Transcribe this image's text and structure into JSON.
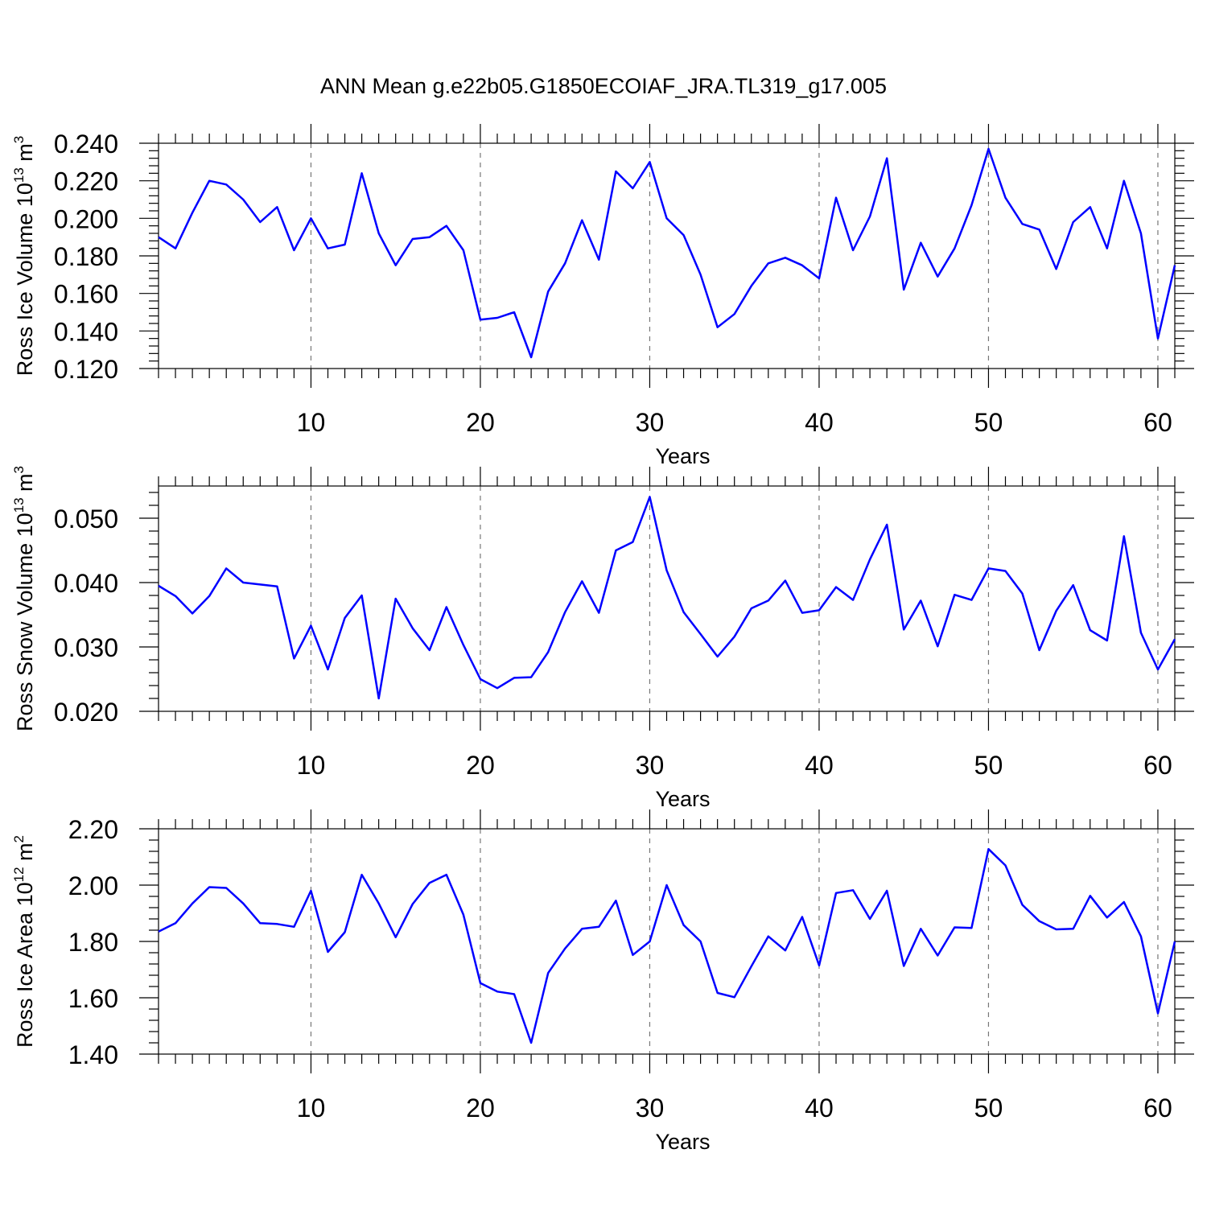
{
  "title": "ANN Mean g.e22b05.G1850ECOIAF_JRA.TL319_g17.005",
  "colors": {
    "series": "#0000ff",
    "axis": "#000000",
    "grid": "#777777"
  },
  "chart_data": [
    {
      "type": "line",
      "ylabel": "Ross Ice Volume 10",
      "ylabel_sup": "13",
      "ylabel_unit": " m",
      "ylabel_unit_sup": "3",
      "xlabel": "Years",
      "xlim": [
        1,
        61
      ],
      "ylim": [
        0.12,
        0.24
      ],
      "xticks": [
        "10",
        "20",
        "30",
        "40",
        "50",
        "60"
      ],
      "yticks": [
        "0.120",
        "0.140",
        "0.160",
        "0.180",
        "0.200",
        "0.220",
        "0.240"
      ],
      "grid_x": true,
      "x": [
        1,
        2,
        3,
        4,
        5,
        6,
        7,
        8,
        9,
        10,
        11,
        12,
        13,
        14,
        15,
        16,
        17,
        18,
        19,
        20,
        21,
        22,
        23,
        24,
        25,
        26,
        27,
        28,
        29,
        30,
        31,
        32,
        33,
        34,
        35,
        36,
        37,
        38,
        39,
        40,
        41,
        42,
        43,
        44,
        45,
        46,
        47,
        48,
        49,
        50,
        51,
        52,
        53,
        54,
        55,
        56,
        57,
        58,
        59,
        60,
        61
      ],
      "y": [
        0.19,
        0.184,
        0.203,
        0.22,
        0.218,
        0.21,
        0.198,
        0.206,
        0.183,
        0.2,
        0.184,
        0.186,
        0.224,
        0.192,
        0.175,
        0.189,
        0.19,
        0.196,
        0.183,
        0.146,
        0.147,
        0.15,
        0.126,
        0.161,
        0.176,
        0.199,
        0.178,
        0.225,
        0.216,
        0.23,
        0.2,
        0.191,
        0.17,
        0.142,
        0.149,
        0.164,
        0.176,
        0.179,
        0.175,
        0.168,
        0.211,
        0.183,
        0.201,
        0.232,
        0.162,
        0.187,
        0.169,
        0.184,
        0.207,
        0.237,
        0.211,
        0.197,
        0.194,
        0.173,
        0.198,
        0.206,
        0.184,
        0.22,
        0.192,
        0.136,
        0.175
      ]
    },
    {
      "type": "line",
      "ylabel": "Ross Snow Volume 10",
      "ylabel_sup": "13",
      "ylabel_unit": " m",
      "ylabel_unit_sup": "3",
      "xlabel": "Years",
      "xlim": [
        1,
        61
      ],
      "ylim": [
        0.02,
        0.055
      ],
      "xticks": [
        "10",
        "20",
        "30",
        "40",
        "50",
        "60"
      ],
      "yticks": [
        "0.020",
        "0.030",
        "0.040",
        "0.050"
      ],
      "grid_x": true,
      "x": [
        1,
        2,
        3,
        4,
        5,
        6,
        7,
        8,
        9,
        10,
        11,
        12,
        13,
        14,
        15,
        16,
        17,
        18,
        19,
        20,
        21,
        22,
        23,
        24,
        25,
        26,
        27,
        28,
        29,
        30,
        31,
        32,
        33,
        34,
        35,
        36,
        37,
        38,
        39,
        40,
        41,
        42,
        43,
        44,
        45,
        46,
        47,
        48,
        49,
        50,
        51,
        52,
        53,
        54,
        55,
        56,
        57,
        58,
        59,
        60,
        61
      ],
      "y": [
        0.0395,
        0.0379,
        0.0352,
        0.0379,
        0.0422,
        0.04,
        0.0397,
        0.0394,
        0.0282,
        0.0333,
        0.0265,
        0.0345,
        0.038,
        0.022,
        0.0375,
        0.0329,
        0.0295,
        0.0362,
        0.0303,
        0.025,
        0.0236,
        0.0252,
        0.0253,
        0.0292,
        0.0354,
        0.0402,
        0.0353,
        0.045,
        0.0463,
        0.0533,
        0.0419,
        0.0354,
        0.032,
        0.0285,
        0.0316,
        0.036,
        0.0372,
        0.0403,
        0.0353,
        0.0357,
        0.0393,
        0.0373,
        0.0436,
        0.049,
        0.0327,
        0.0372,
        0.0301,
        0.0381,
        0.0373,
        0.0422,
        0.0418,
        0.0383,
        0.0295,
        0.0356,
        0.0396,
        0.0326,
        0.031,
        0.0472,
        0.0322,
        0.0265,
        0.0312
      ]
    },
    {
      "type": "line",
      "ylabel": "Ross Ice Area 10",
      "ylabel_sup": "12",
      "ylabel_unit": " m",
      "ylabel_unit_sup": "2",
      "xlabel": "Years",
      "xlim": [
        1,
        61
      ],
      "ylim": [
        1.4,
        2.2
      ],
      "xticks": [
        "10",
        "20",
        "30",
        "40",
        "50",
        "60"
      ],
      "yticks": [
        "1.40",
        "1.60",
        "1.80",
        "2.00",
        "2.20"
      ],
      "grid_x": true,
      "x": [
        1,
        2,
        3,
        4,
        5,
        6,
        7,
        8,
        9,
        10,
        11,
        12,
        13,
        14,
        15,
        16,
        17,
        18,
        19,
        20,
        21,
        22,
        23,
        24,
        25,
        26,
        27,
        28,
        29,
        30,
        31,
        32,
        33,
        34,
        35,
        36,
        37,
        38,
        39,
        40,
        41,
        42,
        43,
        44,
        45,
        46,
        47,
        48,
        49,
        50,
        51,
        52,
        53,
        54,
        55,
        56,
        57,
        58,
        59,
        60,
        61
      ],
      "y": [
        1.835,
        1.865,
        1.935,
        1.993,
        1.99,
        1.935,
        1.865,
        1.862,
        1.852,
        1.98,
        1.763,
        1.833,
        2.037,
        1.935,
        1.815,
        1.933,
        2.008,
        2.037,
        1.895,
        1.652,
        1.622,
        1.613,
        1.44,
        1.688,
        1.775,
        1.845,
        1.852,
        1.945,
        1.752,
        1.8,
        2.0,
        1.858,
        1.8,
        1.617,
        1.602,
        1.712,
        1.818,
        1.768,
        1.887,
        1.715,
        1.972,
        1.982,
        1.88,
        1.98,
        1.713,
        1.845,
        1.75,
        1.85,
        1.848,
        2.128,
        2.07,
        1.93,
        1.872,
        1.843,
        1.845,
        1.962,
        1.885,
        1.94,
        1.818,
        1.545,
        1.8
      ]
    }
  ]
}
